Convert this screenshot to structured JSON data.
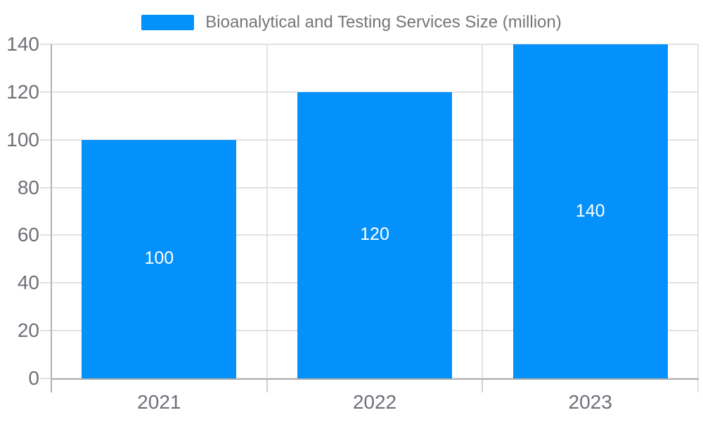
{
  "chart_data": {
    "type": "bar",
    "title": "Bioanalytical and Testing Services Size (million)",
    "categories": [
      "2021",
      "2022",
      "2023"
    ],
    "values": [
      100,
      120,
      140
    ],
    "bar_labels": [
      "100",
      "120",
      "140"
    ],
    "yticks": [
      0,
      20,
      40,
      60,
      80,
      100,
      120,
      140
    ],
    "ylim": [
      0,
      140
    ],
    "xlabel": "",
    "ylabel": "",
    "grid": true,
    "legend_position": "top",
    "legend_entries": [
      "Bioanalytical and Testing Services Size (million)"
    ],
    "colors": {
      "series": "#0591fc",
      "grid_line": "#e2e2e2",
      "axis_line": "#b0b0b0",
      "tick_label": "#6e7079",
      "legend_text": "#757575",
      "bar_value_text": "#ffffff",
      "background": "#ffffff"
    }
  }
}
